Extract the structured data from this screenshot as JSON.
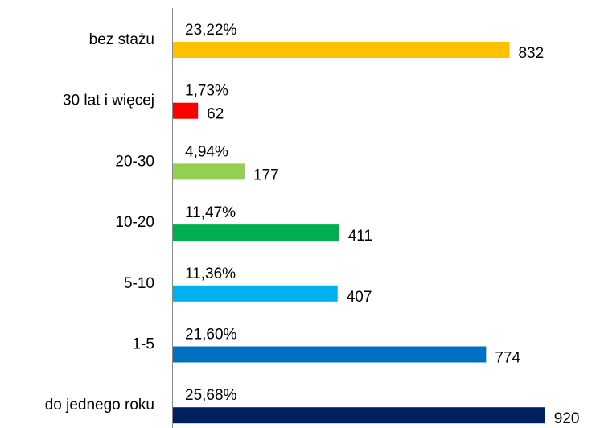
{
  "chart_data": {
    "type": "bar",
    "orientation": "horizontal",
    "categories": [
      "bez stażu",
      "30 lat i więcej",
      "20-30",
      "10-20",
      "5-10",
      "1-5",
      "do jednego roku"
    ],
    "values": [
      832,
      62,
      177,
      411,
      407,
      774,
      920
    ],
    "share_labels": [
      "23,22%",
      "1,73%",
      "4,94%",
      "11,47%",
      "11,36%",
      "21,60%",
      "25,68%"
    ],
    "colors": [
      "#FFC000",
      "#FF0000",
      "#92D050",
      "#00B050",
      "#00B0F0",
      "#0070C0",
      "#002060"
    ],
    "xlim": [
      0,
      1000
    ]
  }
}
